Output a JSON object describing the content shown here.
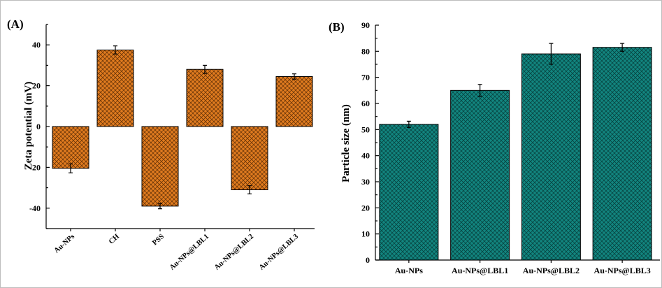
{
  "chart_data": [
    {
      "type": "bar",
      "panel_label": "(A)",
      "categories": [
        "Au-NPs",
        "CH",
        "PSS",
        "Au-NPs@LBL1",
        "Au-NPs@LBL2",
        "Au-NPs@LBL3"
      ],
      "values": [
        -20.5,
        37.5,
        -39,
        28,
        -31,
        24.5
      ],
      "errors": [
        2.2,
        2,
        1.3,
        2,
        2,
        1.3
      ],
      "xlabel": "",
      "ylabel": "Zeta potential (mV)",
      "ylim": [
        -50,
        50
      ],
      "yticks": [
        -40,
        -20,
        0,
        20,
        40
      ],
      "ytick_labels": [
        "-40",
        "-20",
        "0",
        "20",
        "40"
      ],
      "bar_color": "#e07b1f",
      "pattern": "crosshatch",
      "grid": false
    },
    {
      "type": "bar",
      "panel_label": "(B)",
      "categories": [
        "Au-NPs",
        "Au-NPs@LBL1",
        "Au-NPs@LBL2",
        "Au-NPs@LBL3"
      ],
      "values": [
        52,
        65,
        79,
        81.5
      ],
      "errors": [
        1.2,
        2.3,
        4,
        1.5
      ],
      "xlabel": "",
      "ylabel": "Particle size (nm)",
      "ylim": [
        0,
        90
      ],
      "yticks": [
        0,
        10,
        20,
        30,
        40,
        50,
        60,
        70,
        80,
        90
      ],
      "ytick_labels": [
        "0",
        "10",
        "20",
        "30",
        "40",
        "50",
        "60",
        "70",
        "80",
        "90"
      ],
      "bar_color": "#12857f",
      "pattern": "crosshatch",
      "grid": false
    }
  ]
}
